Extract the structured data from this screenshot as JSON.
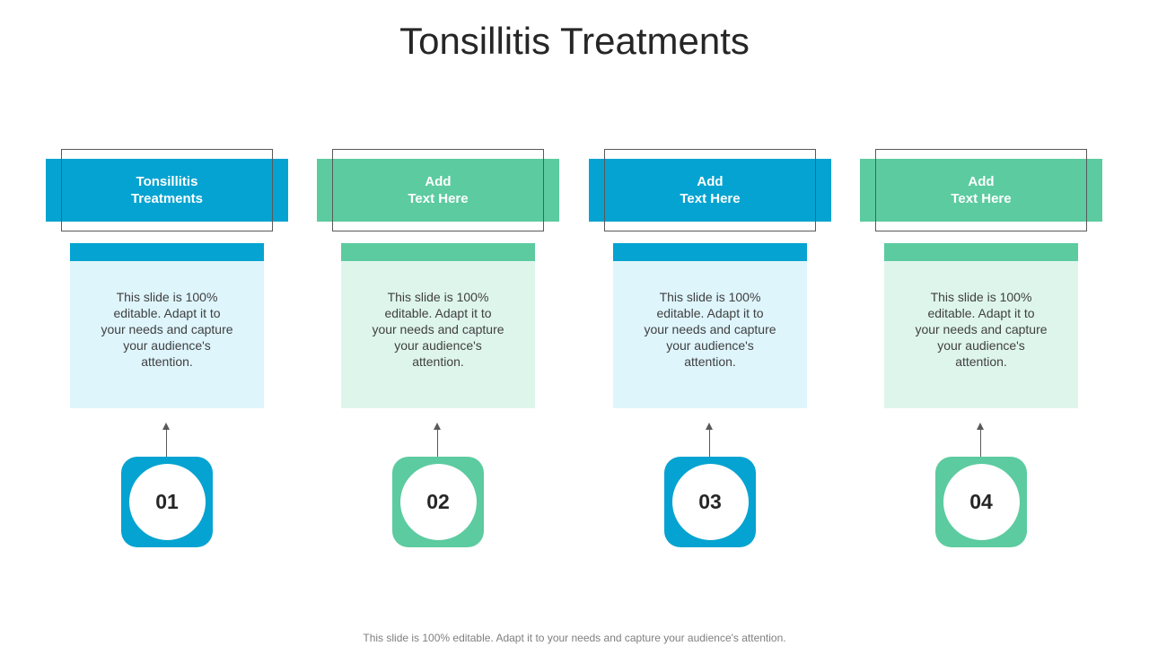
{
  "slide": {
    "title": "Tonsillitis Treatments",
    "footer": "This slide is 100% editable. Adapt it to your needs and capture your audience's attention."
  },
  "colors": {
    "blue": "#05a3d1",
    "blue_light": "#def5fc",
    "green": "#5ccba0",
    "green_light": "#def5ec"
  },
  "steps": [
    {
      "header": "Tonsillitis\nTreatments",
      "body": "This slide is 100% editable. Adapt it to your needs and capture your audience's attention.",
      "number": "01"
    },
    {
      "header": "Add\nText Here",
      "body": "This slide is 100% editable. Adapt it to your needs and capture your audience's attention.",
      "number": "02"
    },
    {
      "header": "Add\nText Here",
      "body": "This slide is 100% editable. Adapt it to your needs and capture your audience's attention.",
      "number": "03"
    },
    {
      "header": "Add\nText Here",
      "body": "This slide is 100% editable. Adapt it to your needs and capture your audience's attention.",
      "number": "04"
    }
  ]
}
